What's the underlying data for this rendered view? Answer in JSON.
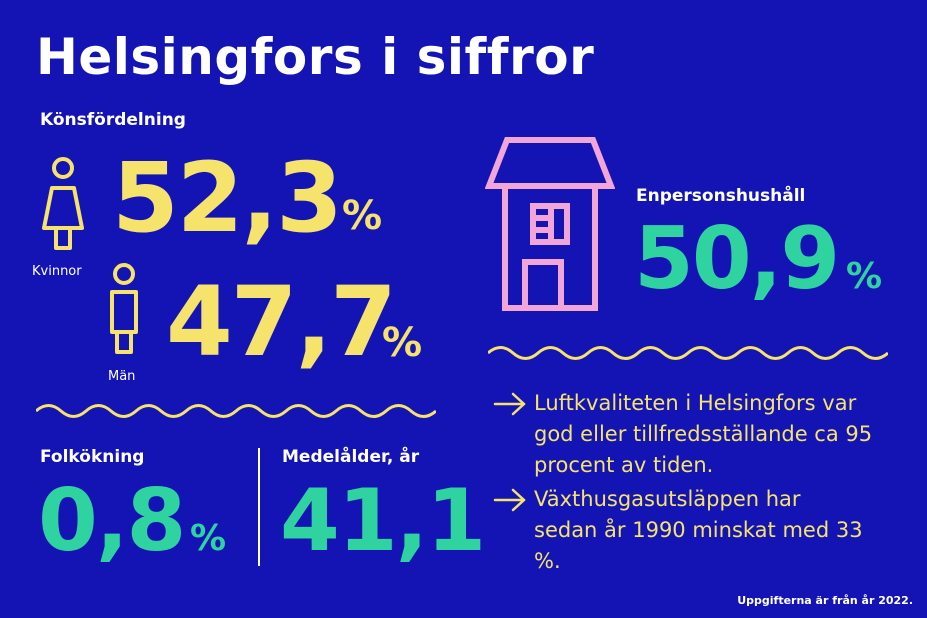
{
  "title": "Helsingfors i siffror",
  "gender": {
    "heading": "Könsfördelning",
    "women": {
      "value": "52,3",
      "unit": "%",
      "label": "Kvinnor"
    },
    "men": {
      "value": "47,7",
      "unit": "%",
      "label": "Män"
    }
  },
  "households": {
    "heading": "Enpersonshushåll",
    "value": "50,9",
    "unit": "%"
  },
  "growth": {
    "heading": "Folkökning",
    "value": "0,8",
    "unit": "%"
  },
  "median_age": {
    "heading": "Medelålder, år",
    "value": "41,1"
  },
  "bullets": [
    "Luftkvaliteten i Helsingfors var god eller tillfredsställande ca 95 procent av tiden.",
    "Växthusgasutsläppen har sedan år 1990 minskat med 33 %."
  ],
  "footnote": "Uppgifterna är från år 2022.",
  "icons": {
    "woman": "woman-icon",
    "man": "man-icon",
    "house": "house-icon",
    "arrow": "arrow-right-icon",
    "wave": "wave-divider"
  },
  "colors": {
    "background": "#1414b4",
    "yellow": "#f5e36b",
    "green": "#2ed3a0",
    "pink": "#f2a6d8",
    "white": "#ffffff"
  }
}
